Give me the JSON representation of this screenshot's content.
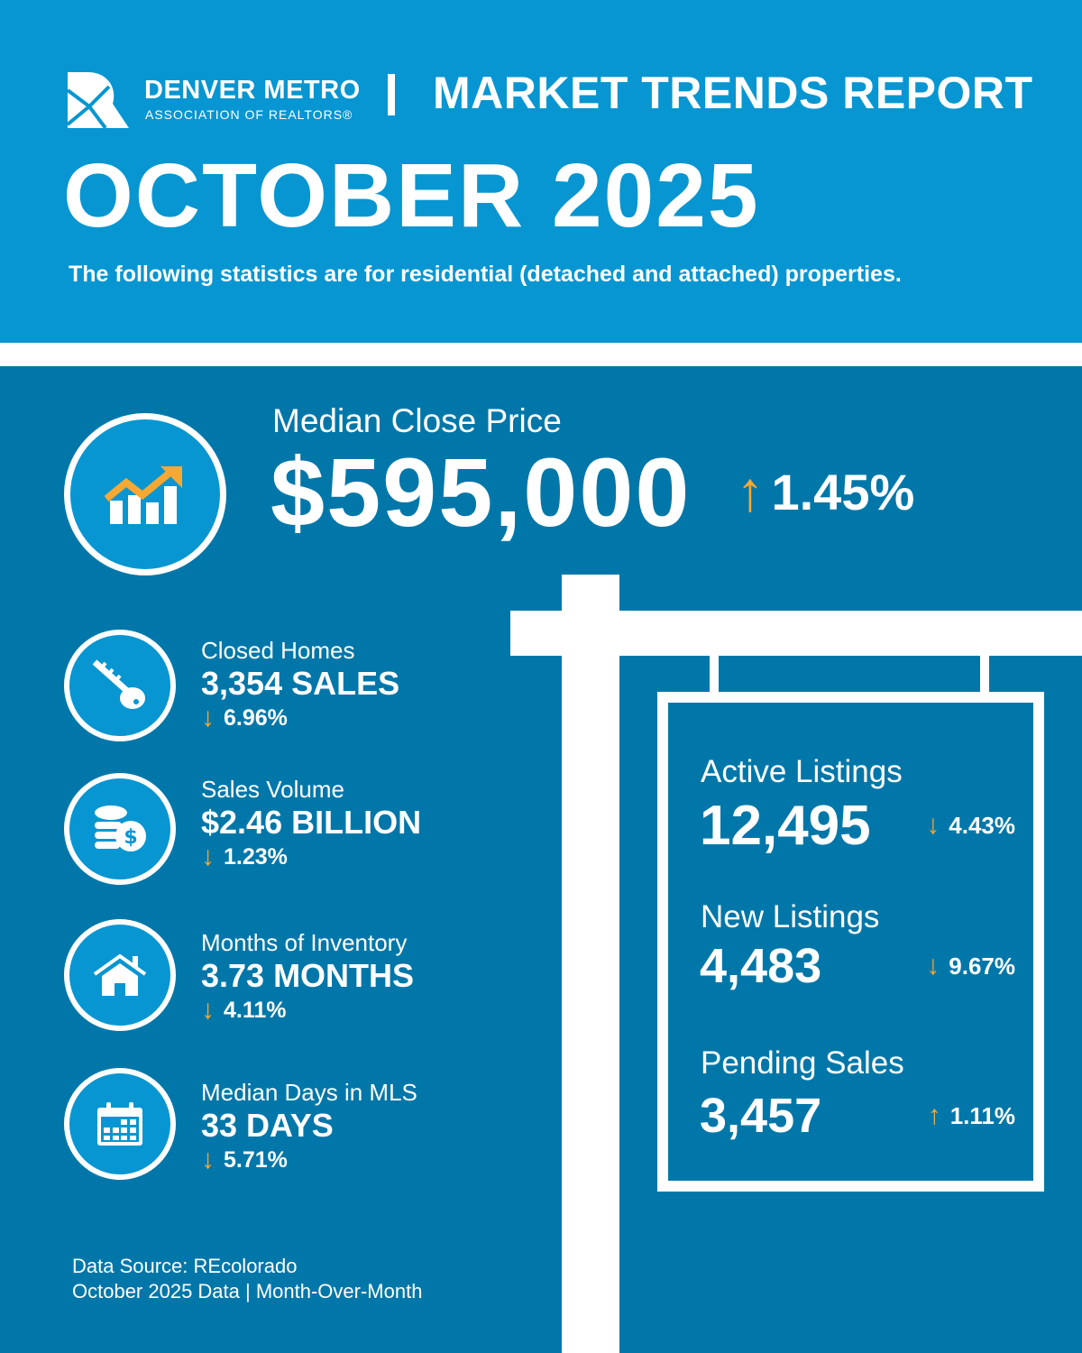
{
  "header": {
    "org_name": "DENVER METRO",
    "org_sub": "ASSOCIATION OF REALTORS®",
    "report_title": "MARKET TRENDS REPORT",
    "month": "OCTOBER 2025",
    "subtitle": "The following statistics are for residential (detached and attached) properties."
  },
  "colors": {
    "top_band": "#0796d1",
    "main_bg": "#0177a9",
    "accent": "#f7a833"
  },
  "median_price": {
    "label": "Median Close Price",
    "value": "$595,000",
    "change": "1.45%",
    "direction": "up",
    "icon": "chart-growth-icon"
  },
  "left_stats": [
    {
      "label": "Closed Homes",
      "value": "3,354 SALES",
      "change": "6.96%",
      "direction": "down",
      "icon": "key-icon"
    },
    {
      "label": "Sales Volume",
      "value": "$2.46 BILLION",
      "change": "1.23%",
      "direction": "down",
      "icon": "coins-icon"
    },
    {
      "label": "Months of Inventory",
      "value": "3.73 MONTHS",
      "change": "4.11%",
      "direction": "down",
      "icon": "house-icon"
    },
    {
      "label": "Median Days in MLS",
      "value": "33 DAYS",
      "change": "5.71%",
      "direction": "down",
      "icon": "calendar-icon"
    }
  ],
  "sign_stats": [
    {
      "label": "Active Listings",
      "value": "12,495",
      "change": "4.43%",
      "direction": "down"
    },
    {
      "label": "New Listings",
      "value": "4,483",
      "change": "9.67%",
      "direction": "down"
    },
    {
      "label": "Pending Sales",
      "value": "3,457",
      "change": "1.11%",
      "direction": "up"
    }
  ],
  "footer": {
    "source": "Data Source: REcolorado",
    "period": "October 2025 Data | Month-Over-Month"
  }
}
